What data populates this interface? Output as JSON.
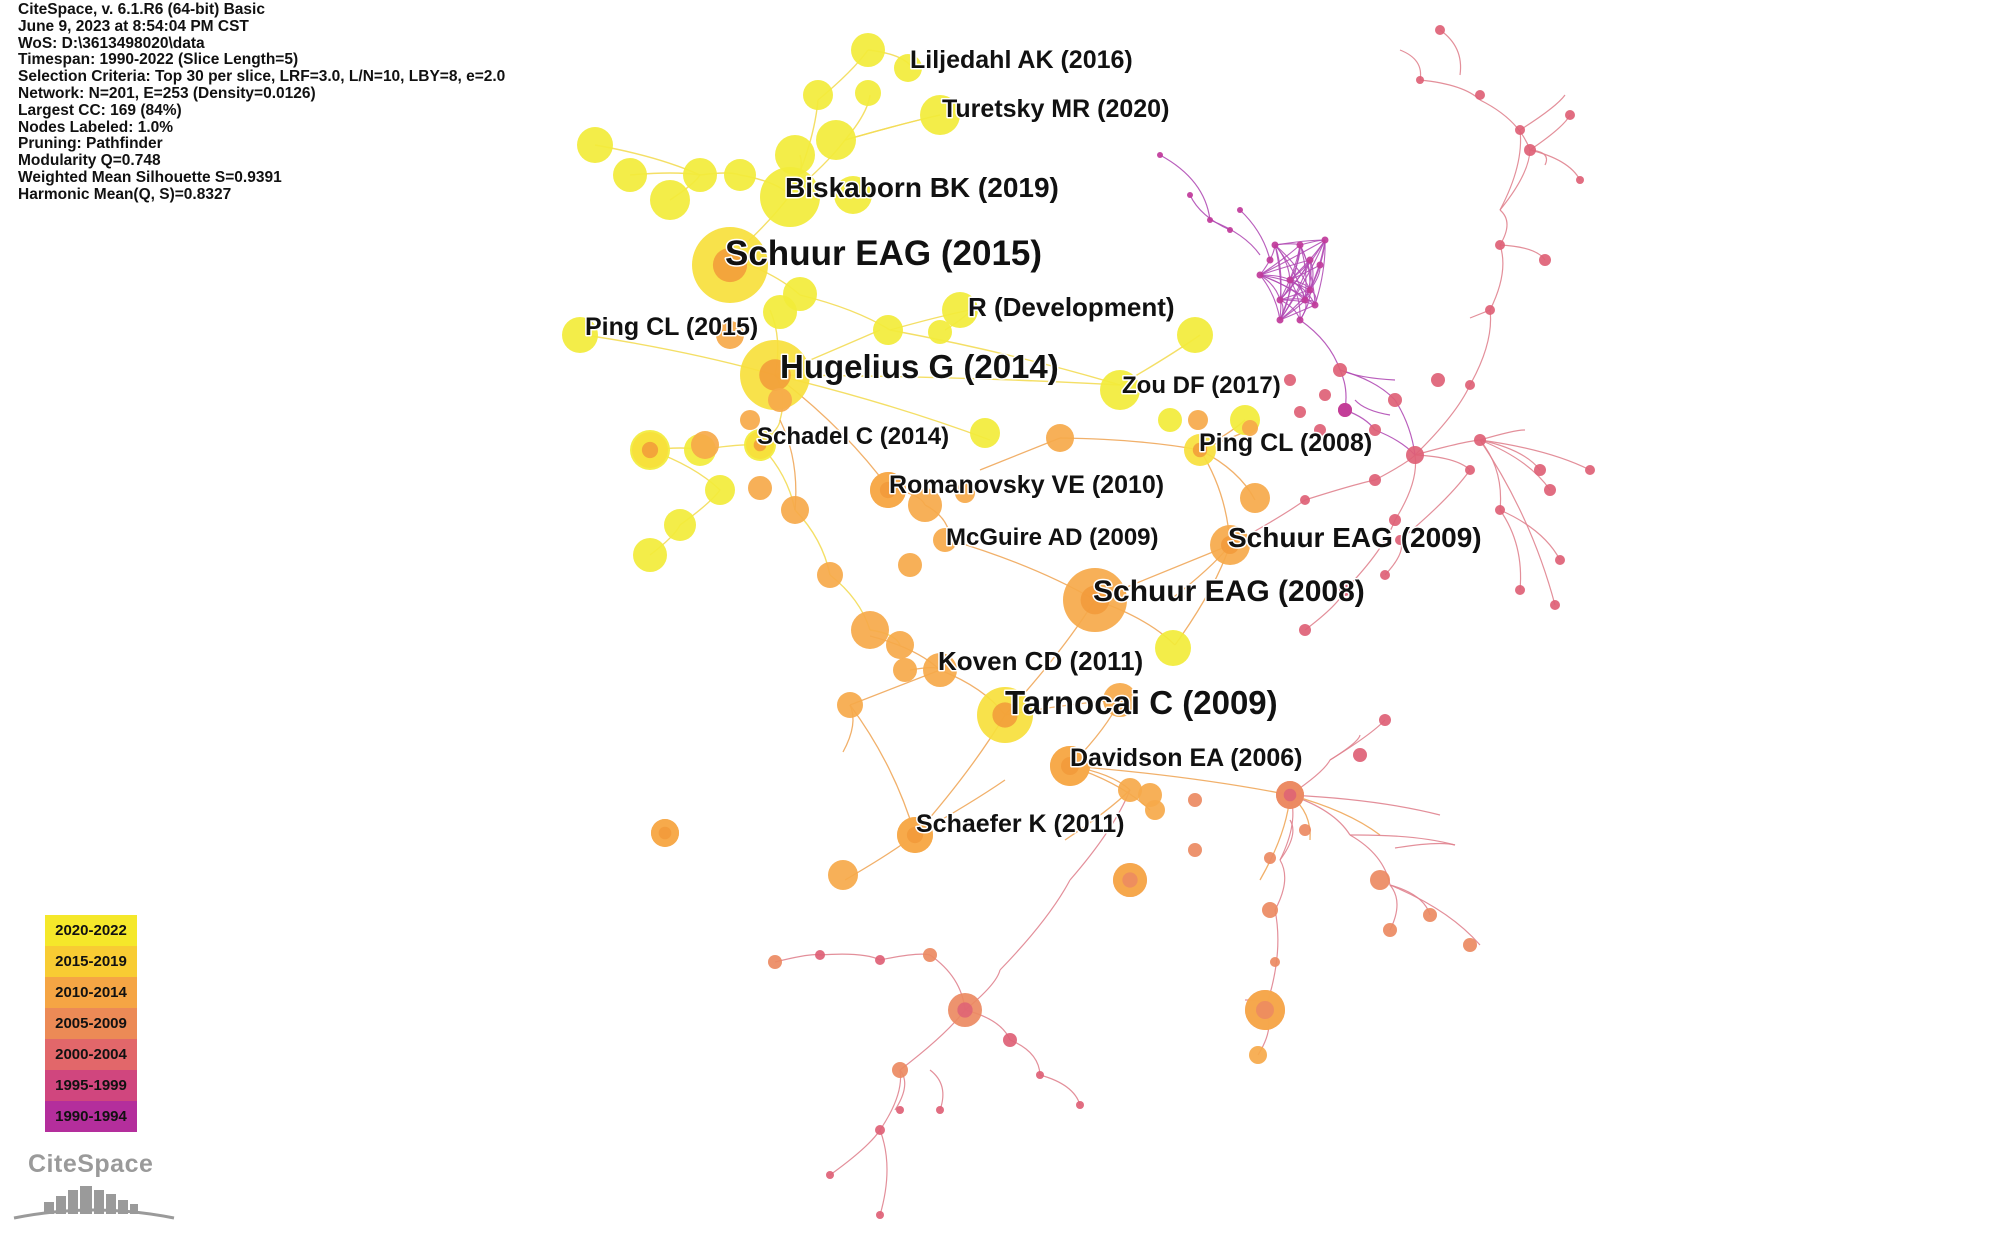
{
  "meta_lines": [
    "CiteSpace, v. 6.1.R6 (64-bit) Basic",
    "June 9, 2023 at 8:54:04 PM CST",
    "WoS: D:\\3613498020\\data",
    "Timespan: 1990-2022 (Slice Length=5)",
    "Selection Criteria: Top 30 per slice, LRF=3.0, L/N=10, LBY=8, e=2.0",
    "Network: N=201, E=253 (Density=0.0126)",
    "Largest CC: 169 (84%)",
    "Nodes Labeled: 1.0%",
    "Pruning: Pathfinder",
    "Modularity Q=0.748",
    "Weighted Mean Silhouette S=0.9391",
    "Harmonic Mean(Q, S)=0.8327"
  ],
  "node_labels": [
    "Liljedahl AK (2016)",
    "Turetsky MR (2020)",
    "Biskaborn BK (2019)",
    "Schuur EAG (2015)",
    "R (Development)",
    "Ping CL (2015)",
    "Hugelius G (2014)",
    "Zou DF (2017)",
    "Schadel C (2014)",
    "Ping CL (2008)",
    "Romanovsky VE (2010)",
    "McGuire AD (2009)",
    "Schuur EAG (2009)",
    "Schuur EAG (2008)",
    "Koven CD (2011)",
    "Tarnocai C (2009)",
    "Davidson EA (2006)",
    "Schaefer K (2011)"
  ],
  "legend": [
    {
      "label": "2020-2022",
      "color": "#f5e82a"
    },
    {
      "label": "2015-2019",
      "color": "#f8cc33"
    },
    {
      "label": "2010-2014",
      "color": "#f5a544"
    },
    {
      "label": "2005-2009",
      "color": "#ec8a56"
    },
    {
      "label": "2000-2004",
      "color": "#e2676a"
    },
    {
      "label": "1995-1999",
      "color": "#d0467e"
    },
    {
      "label": "1990-1994",
      "color": "#b42e9c"
    }
  ],
  "logo_text": "CiteSpace",
  "colors": {
    "yellow": "#f2ec3a",
    "yellow_ring": "#f7e03c",
    "orange_core": "#f29a3a",
    "orange": "#f6a94a",
    "salmon": "#ec8a62",
    "pink": "#de6176",
    "magenta": "#c0399a",
    "edge_yellow": "#f3dc55",
    "edge_orange": "#f0a75a",
    "edge_pink": "#e0838f",
    "edge_magenta": "#b14db5"
  }
}
